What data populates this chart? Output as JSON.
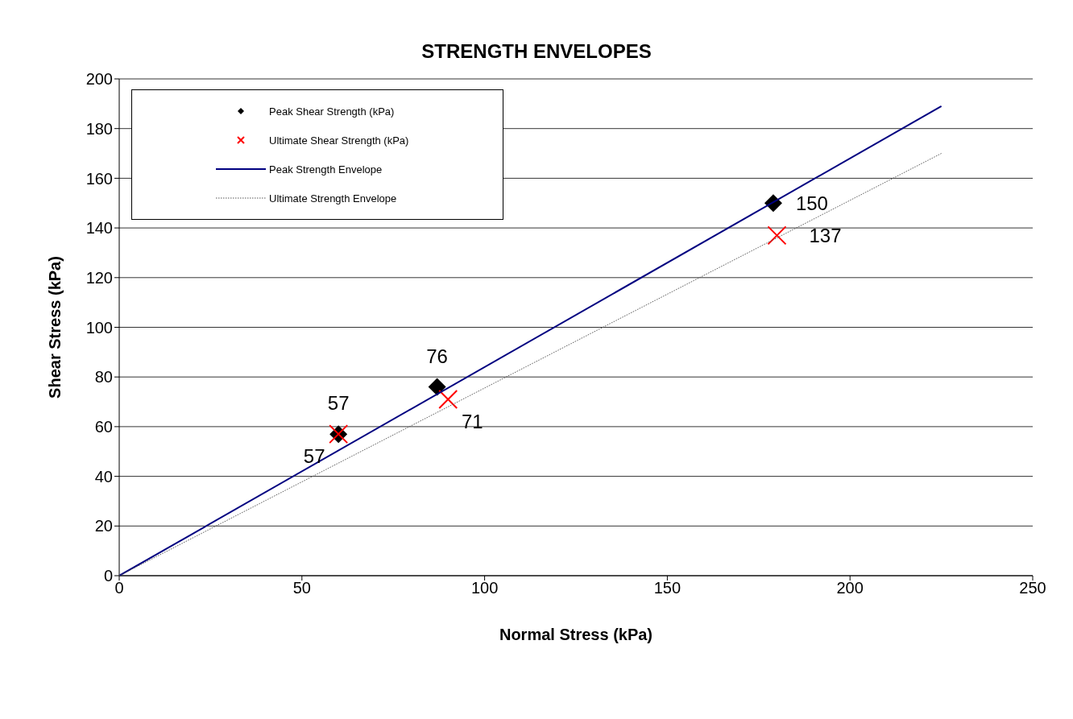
{
  "chart_data": {
    "type": "scatter",
    "title": "STRENGTH ENVELOPES",
    "xlabel": "Normal Stress (kPa)",
    "ylabel": "Shear Stress (kPa)",
    "xlim": [
      0,
      250
    ],
    "xticks": [
      0,
      50,
      100,
      150,
      200,
      250
    ],
    "ylim": [
      0,
      200
    ],
    "yticks": [
      0,
      20,
      40,
      60,
      80,
      100,
      120,
      140,
      160,
      180,
      200
    ],
    "grid": "y",
    "legend": "top left",
    "series": [
      {
        "name": "Peak Shear Strength (kPa)",
        "marker": "diamond",
        "color": "#000000",
        "x": [
          60,
          87,
          179
        ],
        "values": [
          57,
          76,
          150
        ],
        "value_labels": [
          "57",
          "76",
          "150"
        ]
      },
      {
        "name": "Ultimate Shear Strength (kPa)",
        "marker": "cross",
        "color": "#ff0000",
        "x": [
          60,
          90,
          180
        ],
        "values": [
          57,
          71,
          137
        ],
        "value_labels": [
          "57",
          "71",
          "137"
        ]
      },
      {
        "name": "Peak Strength Envelope",
        "type": "line",
        "marker": "none",
        "line_style": "solid",
        "color": "#000080",
        "x": [
          0,
          225
        ],
        "values": [
          0,
          189
        ]
      },
      {
        "name": "Ultimate Strength Envelope",
        "type": "line",
        "marker": "none",
        "line_style": "dotted",
        "color": "#555555",
        "x": [
          0,
          225
        ],
        "values": [
          0,
          170
        ]
      }
    ]
  }
}
